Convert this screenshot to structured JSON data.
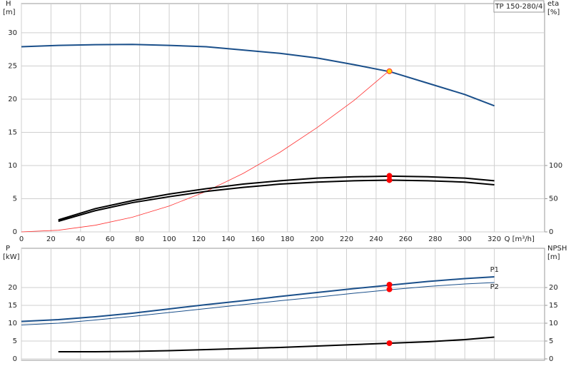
{
  "chart_data": [
    {
      "type": "line",
      "title": "TP 150-280/4",
      "ylabel": "H",
      "yunit": "[m]",
      "y2label": "eta",
      "y2unit": "[%]",
      "xlabel": "Q [m³/h]",
      "xlim": [
        0,
        354
      ],
      "ylim": [
        0,
        34.4
      ],
      "y2lim": [
        0,
        344
      ],
      "xticks": [
        0,
        20,
        40,
        60,
        80,
        100,
        120,
        140,
        160,
        180,
        200,
        220,
        240,
        260,
        280,
        300,
        320
      ],
      "yticks": [
        0,
        5,
        10,
        15,
        20,
        25,
        30
      ],
      "y2ticks": [
        0,
        50,
        100
      ],
      "grid": true,
      "x": [
        0,
        25,
        50,
        75,
        100,
        125,
        150,
        175,
        200,
        225,
        250,
        275,
        300,
        320
      ],
      "series": [
        {
          "color": "#1a4f8a",
          "linewidth": 2,
          "axis": "y",
          "values": [
            27.9,
            28.1,
            28.2,
            28.25,
            28.1,
            27.9,
            27.4,
            26.9,
            26.2,
            25.2,
            24.1,
            22.4,
            20.7,
            19.0
          ]
        },
        {
          "color": "#ff3030",
          "linewidth": 0.8,
          "axis": "y",
          "values": [
            0,
            0.25,
            1,
            2.2,
            3.9,
            6.1,
            8.8,
            12,
            15.7,
            19.8,
            24.5,
            null,
            null,
            null
          ]
        },
        {
          "color": "#000000",
          "linewidth": 2,
          "axis": "y2",
          "values": [
            null,
            18,
            35,
            47,
            57,
            65,
            72,
            77,
            81,
            83,
            84,
            83,
            81,
            77
          ]
        },
        {
          "color": "#000000",
          "linewidth": 2,
          "axis": "y2",
          "values": [
            null,
            16,
            32,
            44,
            53,
            61,
            67,
            72,
            75,
            77,
            78,
            77,
            75,
            71
          ]
        }
      ],
      "markers": [
        {
          "x": 249,
          "y": 24.2,
          "axis": "y",
          "color": "#ffd700",
          "edgecolor": "#ff3030"
        },
        {
          "x": 249,
          "y": 84.5,
          "axis": "y2",
          "color": "#ff0000",
          "edgecolor": "#ff0000"
        },
        {
          "x": 249,
          "y": 78,
          "axis": "y2",
          "color": "#ff0000",
          "edgecolor": "#ff0000"
        }
      ]
    },
    {
      "type": "line",
      "ylabel": "P",
      "yunit": "[kW]",
      "y2label": "NPSH",
      "y2unit": "[m]",
      "xlim": [
        0,
        354
      ],
      "ylim": [
        -0.4,
        31
      ],
      "y2lim": [
        -0.4,
        31
      ],
      "yticks": [
        0,
        5,
        10,
        15,
        20
      ],
      "y2ticks": [
        0,
        5,
        10,
        15,
        20
      ],
      "grid": true,
      "x": [
        0,
        25,
        50,
        75,
        100,
        125,
        150,
        175,
        200,
        225,
        250,
        275,
        300,
        320
      ],
      "series": [
        {
          "name": "P1",
          "color": "#1a4f8a",
          "linewidth": 2,
          "axis": "y",
          "values": [
            10.5,
            11,
            11.8,
            12.8,
            14,
            15.2,
            16.3,
            17.5,
            18.6,
            19.7,
            20.7,
            21.7,
            22.5,
            23
          ]
        },
        {
          "name": "P2",
          "color": "#1a4f8a",
          "linewidth": 1,
          "axis": "y",
          "values": [
            9.5,
            10,
            10.9,
            11.9,
            13,
            14.1,
            15.2,
            16.3,
            17.3,
            18.4,
            19.4,
            20.3,
            21,
            21.4
          ]
        },
        {
          "color": "#000000",
          "linewidth": 2,
          "axis": "y2",
          "values": [
            null,
            2,
            2,
            2.1,
            2.3,
            2.6,
            2.9,
            3.2,
            3.6,
            4,
            4.4,
            4.8,
            5.4,
            6.1
          ]
        }
      ],
      "markers": [
        {
          "x": 249,
          "y": 20.8,
          "axis": "y",
          "color": "#ff0000",
          "edgecolor": "#ff0000"
        },
        {
          "x": 249,
          "y": 19.5,
          "axis": "y",
          "color": "#ff0000",
          "edgecolor": "#ff0000"
        },
        {
          "x": 249,
          "y": 4.4,
          "axis": "y2",
          "color": "#ff0000",
          "edgecolor": "#ff0000"
        }
      ]
    }
  ]
}
